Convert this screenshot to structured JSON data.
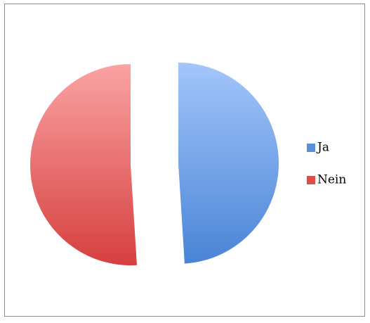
{
  "chart_data": {
    "type": "pie",
    "categories": [
      "Ja",
      "Nein"
    ],
    "values": [
      49,
      51
    ],
    "colors": [
      "#5a8fdc",
      "#dc4e4e"
    ],
    "exploded": true,
    "legend": "right"
  }
}
